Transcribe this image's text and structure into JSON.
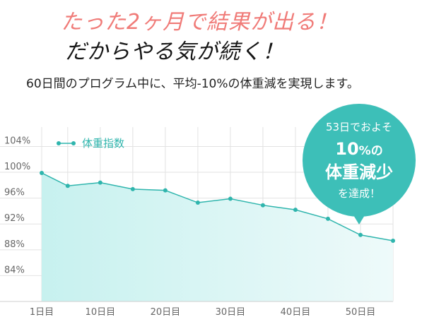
{
  "header": {
    "headline": "たった2ヶ月で結果が出る！",
    "subheadline": "だからやる気が続く！",
    "description": "60日間のプログラム中に、平均-10%の体重減を実現します。"
  },
  "callout": {
    "line1": "53日でおよそ",
    "line2_num": "10",
    "line2_unit": "%の",
    "line3": "体重減少",
    "line4": "を達成！",
    "color": "#3dbfb8"
  },
  "colors": {
    "line": "#2fb5ad",
    "fill_top": "#c7f1ef",
    "fill_bottom": "#eefafa",
    "grid": "#e2e2e2",
    "axis_text": "#666666"
  },
  "chart_data": {
    "type": "area",
    "legend": "体重指数",
    "legend_position": "top-left",
    "y_ticks": [
      "104%",
      "100%",
      "96%",
      "92%",
      "88%",
      "84%"
    ],
    "y_tick_values": [
      104,
      100,
      96,
      92,
      88,
      84
    ],
    "ylim": [
      80,
      107
    ],
    "x_ticks": [
      "1日目",
      "10日目",
      "20日目",
      "30日目",
      "40日目",
      "50日目"
    ],
    "x_tick_values": [
      1,
      10,
      20,
      30,
      40,
      50
    ],
    "xlim": [
      1,
      55
    ],
    "grid": true,
    "series": [
      {
        "name": "体重指数",
        "x": [
          1,
          5,
          10,
          15,
          20,
          25,
          30,
          35,
          40,
          45,
          50,
          55
        ],
        "values": [
          99.9,
          97.9,
          98.4,
          97.4,
          97.2,
          95.3,
          95.9,
          94.9,
          94.2,
          92.8,
          90.3,
          89.4
        ]
      }
    ]
  }
}
